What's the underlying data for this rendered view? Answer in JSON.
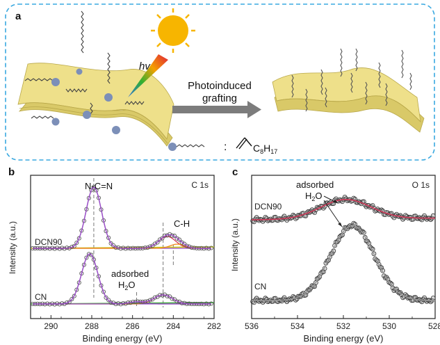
{
  "panel_a": {
    "letter": "a",
    "hv_label": "hv",
    "arrow_label_line1": "Photoinduced",
    "arrow_label_line2": "grafting",
    "legend_colon": ":",
    "legend_formula": "C8H17",
    "legend_formula_main": "C",
    "legend_formula_sub1": "8",
    "legend_formula_h": "H",
    "legend_formula_sub2": "17"
  },
  "chart_data": [
    {
      "panel": "b",
      "type": "line",
      "title": "C 1s",
      "xlabel": "Binding energy (eV)",
      "ylabel": "Intensity (a.u.)",
      "xlim": [
        291,
        282
      ],
      "x_ticks": [
        290,
        288,
        286,
        284,
        282
      ],
      "x_tick_labels": [
        "290",
        "288",
        "286",
        "284",
        "282"
      ],
      "series": [
        {
          "name": "DCN90",
          "peaks": [
            {
              "x": 287.9,
              "label": "N-C=N"
            },
            {
              "x": 284.3,
              "label": "C-H"
            },
            {
              "x": 283.8
            }
          ]
        },
        {
          "name": "CN",
          "peaks": [
            {
              "x": 288.1
            },
            {
              "x": 284.5
            },
            {
              "x": 285.8,
              "label": "adsorbed H2O"
            }
          ]
        }
      ],
      "annotations": [
        "N-C=N",
        "C-H",
        "adsorbed",
        "H2O"
      ],
      "reference_lines_x": [
        287.9,
        284.5,
        284.0,
        285.8
      ]
    },
    {
      "panel": "c",
      "type": "line",
      "title": "O 1s",
      "xlabel": "Binding energy (eV)",
      "ylabel": "Intensity (a.u.)",
      "xlim": [
        536,
        528
      ],
      "x_ticks": [
        536,
        534,
        532,
        530,
        528
      ],
      "x_tick_labels": [
        "536",
        "534",
        "532",
        "530",
        "528"
      ],
      "series": [
        {
          "name": "DCN90",
          "peak_x": 531.9
        },
        {
          "name": "CN",
          "peak_x": 531.6
        }
      ],
      "annotations": [
        "adsorbed",
        "H2O"
      ]
    }
  ],
  "labels": {
    "b_letter": "b",
    "c_letter": "c",
    "b_title": "C 1s",
    "c_title": "O 1s",
    "b_peak1": "N-C=N",
    "b_peak2": "C-H",
    "b_ads1": "adsorbed",
    "b_ads2_main": "H",
    "b_ads2_sub": "2",
    "b_ads2_end": "O",
    "c_ads1": "adsorbed",
    "c_ads2_main": "H",
    "c_ads2_sub": "2",
    "c_ads2_end": "O",
    "b_dcn90": "DCN90",
    "b_cn": "CN",
    "c_dcn90": "DCN90",
    "c_cn": "CN",
    "b_ylabel": "Intensity (a.u.)",
    "c_ylabel": "Intensity (a.u.)",
    "b_xlabel": "Binding energy (eV)",
    "c_xlabel": "Binding energy (eV)",
    "b_ticks": [
      "290",
      "288",
      "286",
      "284",
      "282"
    ],
    "c_ticks": [
      "536",
      "534",
      "532",
      "530",
      "528"
    ]
  },
  "colors": {
    "frame": "#38a8e0",
    "sheet": "#eee08a",
    "sheet_edge": "#b9a84a",
    "sun": "#f7b500",
    "arrow": "#7c7c7c",
    "fit_purple": "#9a4fc7",
    "fit_red": "#d23a5a",
    "fit_orange": "#f08a1c",
    "fit_green": "#3aa83a",
    "fit_yellow": "#c8c81a",
    "data_gray": "#555555"
  }
}
